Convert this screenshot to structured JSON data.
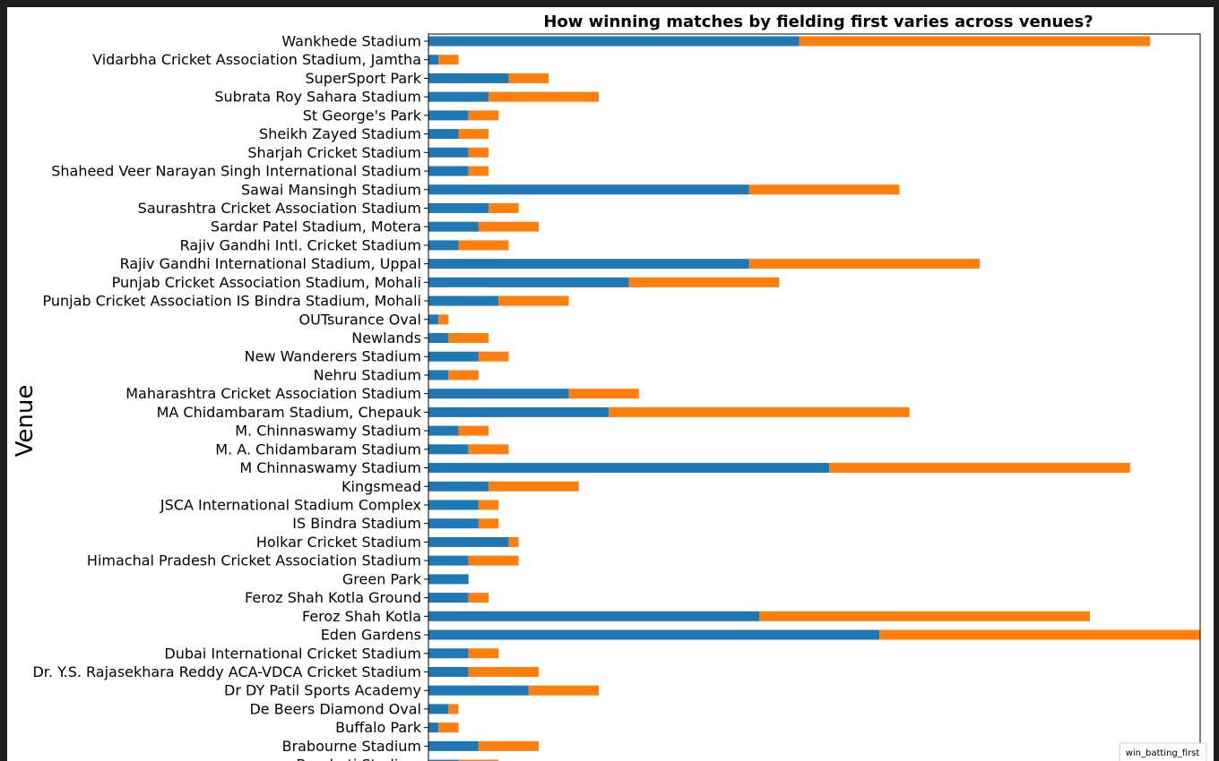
{
  "chart_data": {
    "type": "bar",
    "orientation": "horizontal",
    "stacked": true,
    "title": "How winning matches by fielding first varies across venues?",
    "ylabel": "Venue",
    "xlabel": "",
    "xlim": [
      0,
      77
    ],
    "grid": false,
    "legend_placement": "bottom-right",
    "legend_title": "win_batting_first",
    "categories": [
      "Wankhede Stadium",
      "Vidarbha Cricket Association Stadium, Jamtha",
      "SuperSport Park",
      "Subrata Roy Sahara Stadium",
      "St George's Park",
      "Sheikh Zayed Stadium",
      "Sharjah Cricket Stadium",
      "Shaheed Veer Narayan Singh International Stadium",
      "Sawai Mansingh Stadium",
      "Saurashtra Cricket Association Stadium",
      "Sardar Patel Stadium, Motera",
      "Rajiv Gandhi Intl. Cricket Stadium",
      "Rajiv Gandhi International Stadium, Uppal",
      "Punjab Cricket Association Stadium, Mohali",
      "Punjab Cricket Association IS Bindra Stadium, Mohali",
      "OUTsurance Oval",
      "Newlands",
      "New Wanderers Stadium",
      "Nehru Stadium",
      "Maharashtra Cricket Association Stadium",
      "MA Chidambaram Stadium, Chepauk",
      "M. Chinnaswamy Stadium",
      "M. A. Chidambaram Stadium",
      "M Chinnaswamy Stadium",
      "Kingsmead",
      "JSCA International Stadium Complex",
      "IS Bindra Stadium",
      "Holkar Cricket Stadium",
      "Himachal Pradesh Cricket Association Stadium",
      "Green Park",
      "Feroz Shah Kotla Ground",
      "Feroz Shah Kotla",
      "Eden Gardens",
      "Dubai International Cricket Stadium",
      "Dr. Y.S. Rajasekhara Reddy ACA-VDCA Cricket Stadium",
      "Dr DY Patil Sports Academy",
      "De Beers Diamond Oval",
      "Buffalo Park",
      "Brabourne Stadium",
      "Barabati Stadium"
    ],
    "series": [
      {
        "color": "#1f77b4",
        "values": [
          37,
          1,
          8,
          6,
          4,
          3,
          4,
          4,
          32,
          6,
          5,
          3,
          32,
          20,
          7,
          1,
          2,
          5,
          2,
          14,
          18,
          3,
          4,
          40,
          6,
          5,
          5,
          8,
          4,
          4,
          4,
          33,
          45,
          4,
          4,
          10,
          2,
          1,
          5,
          3
        ]
      },
      {
        "color": "#ff7f0e",
        "values": [
          35,
          2,
          4,
          11,
          3,
          3,
          2,
          2,
          15,
          3,
          6,
          5,
          23,
          15,
          7,
          1,
          4,
          3,
          3,
          7,
          30,
          3,
          4,
          30,
          9,
          2,
          2,
          1,
          5,
          0,
          2,
          33,
          32,
          3,
          7,
          7,
          1,
          2,
          6,
          4
        ]
      }
    ]
  }
}
